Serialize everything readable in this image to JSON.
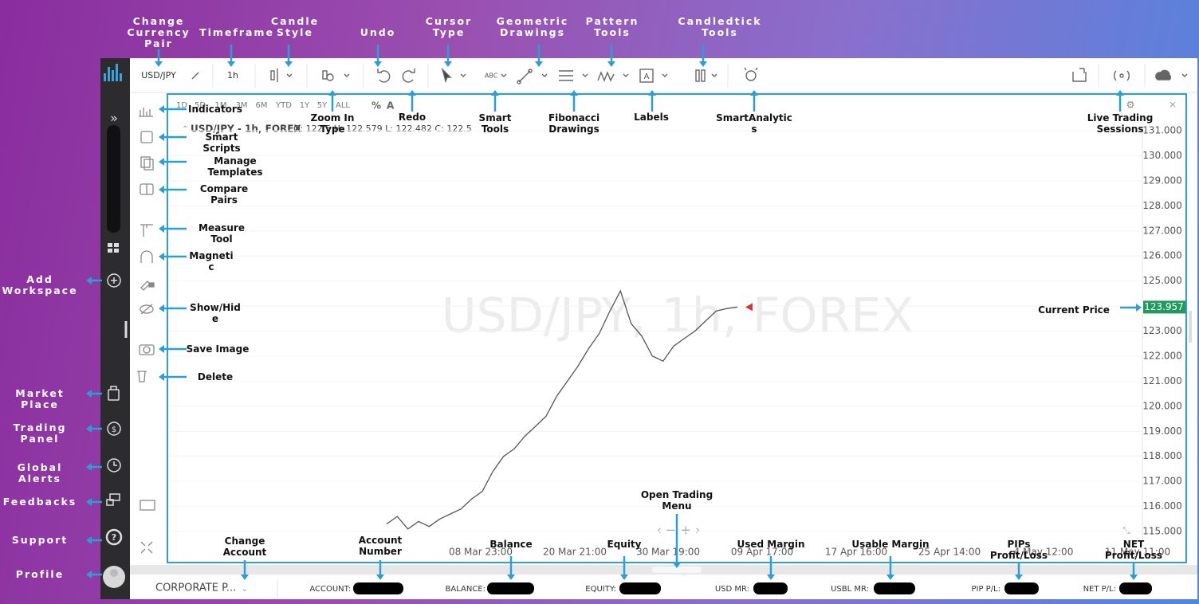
{
  "toolbar": {
    "pair": "USD/JPY",
    "timeframe": "1h"
  },
  "periods": [
    "1D",
    "5D",
    "1M",
    "3M",
    "6M",
    "YTD",
    "1Y",
    "5Y",
    "ALL"
  ],
  "legend": {
    "symbol": "USD/JPY - 1h, FOREX",
    "ohlc": "O: 122.5   H: 122.579  L: 122.482  C: 122.5"
  },
  "watermark": "USD/JPY, 1h, FOREX",
  "chart": {
    "yticks": [
      {
        "value": 131,
        "label": "131.000"
      },
      {
        "value": 130,
        "label": "130.000"
      },
      {
        "value": 129,
        "label": "129.000"
      },
      {
        "value": 128,
        "label": "128.000"
      },
      {
        "value": 127,
        "label": "127.000"
      },
      {
        "value": 126,
        "label": "126.000"
      },
      {
        "value": 125,
        "label": "125.000"
      },
      {
        "value": 124,
        "label": "124.000"
      },
      {
        "value": 123,
        "label": "123.000"
      },
      {
        "value": 122,
        "label": "122.000"
      },
      {
        "value": 121,
        "label": "121.000"
      },
      {
        "value": 120,
        "label": "120.000"
      },
      {
        "value": 119,
        "label": "119.000"
      },
      {
        "value": 118,
        "label": "118.000"
      },
      {
        "value": 117,
        "label": "117.000"
      },
      {
        "value": 116,
        "label": "116.000"
      },
      {
        "value": 115,
        "label": "115.000"
      }
    ],
    "x_labels": [
      "08 Mar 23:00",
      "20 Mar 21:00",
      "30 Mar 19:00",
      "09 Apr 17:00",
      "17 Apr 16:00",
      "25 Apr 14:00",
      "4 May 12:00",
      "11 May 11:00"
    ],
    "current_price": 123.957,
    "prices": [
      115.3,
      115.6,
      115.1,
      115.4,
      115.2,
      115.5,
      115.7,
      115.9,
      116.3,
      116.6,
      117.4,
      118.0,
      118.3,
      118.8,
      119.2,
      119.6,
      120.4,
      121.0,
      121.6,
      122.3,
      122.9,
      123.8,
      124.6,
      123.3,
      122.8,
      122.0,
      121.8,
      122.4,
      122.7,
      123.0,
      123.4,
      123.8,
      123.9,
      123.96
    ]
  },
  "status_bar": {
    "account": "CORPORATE P...",
    "fields": [
      "ACCOUNT:",
      "BALANCE:",
      "EQUITY:",
      "USD MR:",
      "USBL MR:",
      "PIP P/L:",
      "NET P/L:"
    ]
  },
  "annotations": [
    "Change\nCurrency\nPair",
    "Timeframe",
    "Candle\nStyle",
    "Undo",
    "Cursor\nType",
    "Geometric\nDrawings",
    "Pattern\nTools",
    "Candledtick\nTools",
    "Zoom In\nType",
    "Redo",
    "Smart\nTools",
    "Fibonacci\nDrawings",
    "Labels",
    "SmartAnalytic\ns",
    "Live Trading\nSessions",
    "Indicators",
    "Smart\nScripts",
    "Manage\nTemplates",
    "Compare\nPairs",
    "Measure\nTool",
    "Magneti\nc",
    "Show/Hid\ne",
    "Save Image",
    "Delete",
    "Add\nWorkspace",
    "Market\nPlace",
    "Trading\nPanel",
    "Global\nAlerts",
    "Feedbacks",
    "Support",
    "Profile",
    "Current Price",
    "Open Trading\nMenu",
    "Change\nAccount",
    "Account\nNumber",
    "Balance",
    "Equity",
    "Used Margin",
    "Usable Margin",
    "PIPs\nProfit/Loss",
    "NET\nProfit/Loss"
  ]
}
